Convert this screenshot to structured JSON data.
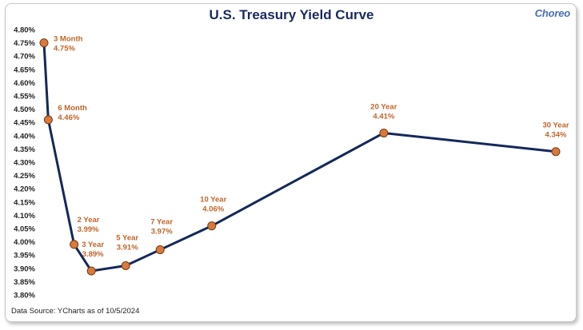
{
  "brand": "Choreo",
  "source_note": "Data Source: YCharts as of 10/5/2024",
  "colors": {
    "line": "#14285a",
    "marker": "#d77a3c",
    "marker_stroke": "#7a3a12",
    "label": "#c0652a"
  },
  "chart_data": {
    "type": "line",
    "title": "U.S. Treasury Yield Curve",
    "xlabel": "",
    "ylabel": "",
    "ylim": [
      3.8,
      4.8
    ],
    "ytick_step": 0.05,
    "ytick_labels": [
      "3.80%",
      "3.85%",
      "3.90%",
      "3.95%",
      "4.00%",
      "4.05%",
      "4.10%",
      "4.15%",
      "4.20%",
      "4.25%",
      "4.30%",
      "4.35%",
      "4.40%",
      "4.45%",
      "4.50%",
      "4.55%",
      "4.60%",
      "4.65%",
      "4.70%",
      "4.75%",
      "4.80%"
    ],
    "grid": false,
    "points": [
      {
        "maturity_years": 0.25,
        "name": "3 Month",
        "value": 4.75,
        "value_label": "4.75%"
      },
      {
        "maturity_years": 0.5,
        "name": "6 Month",
        "value": 4.46,
        "value_label": "4.46%"
      },
      {
        "maturity_years": 2,
        "name": "2 Year",
        "value": 3.99,
        "value_label": "3.99%"
      },
      {
        "maturity_years": 3,
        "name": "3 Year",
        "value": 3.89,
        "value_label": "3.89%"
      },
      {
        "maturity_years": 5,
        "name": "5 Year",
        "value": 3.91,
        "value_label": "3.91%"
      },
      {
        "maturity_years": 7,
        "name": "7 Year",
        "value": 3.97,
        "value_label": "3.97%"
      },
      {
        "maturity_years": 10,
        "name": "10 Year",
        "value": 4.06,
        "value_label": "4.06%"
      },
      {
        "maturity_years": 20,
        "name": "20 Year",
        "value": 4.41,
        "value_label": "4.41%"
      },
      {
        "maturity_years": 30,
        "name": "30 Year",
        "value": 4.34,
        "value_label": "4.34%"
      }
    ]
  }
}
